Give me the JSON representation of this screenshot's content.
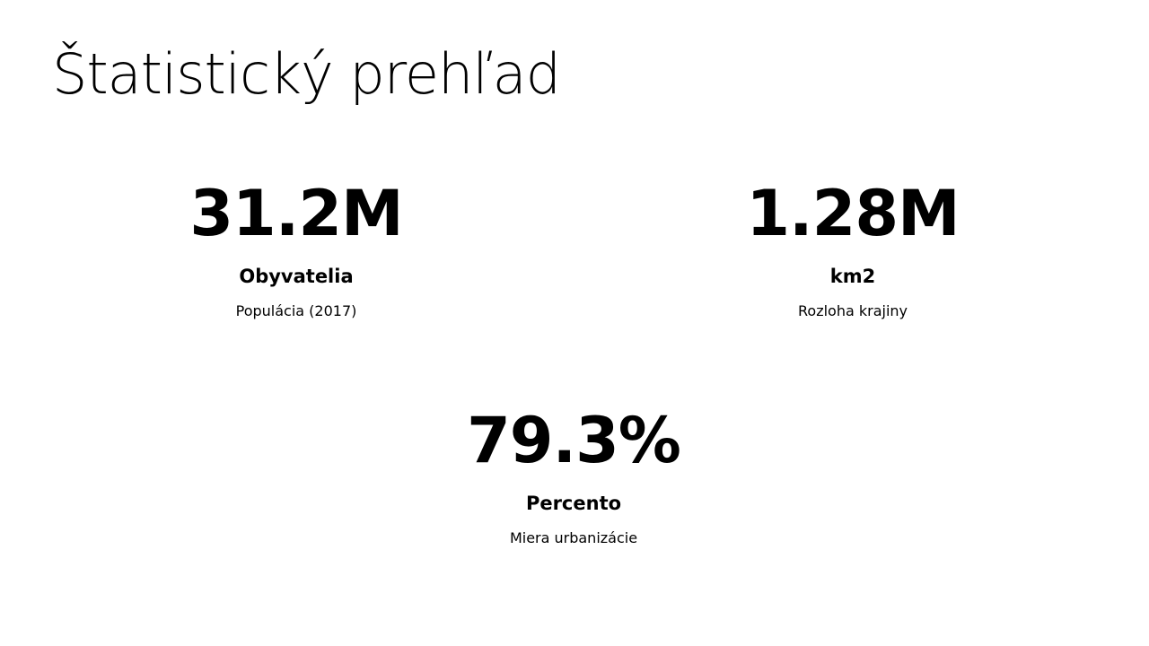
{
  "slide": {
    "title": "Štatistický prehľad"
  },
  "stats": [
    {
      "value": "31.2M",
      "label": "Obyvatelia",
      "description": "Populácia (2017)"
    },
    {
      "value": "1.28M",
      "label": "km2",
      "description": "Rozloha krajiny"
    },
    {
      "value": "79.3%",
      "label": "Percento",
      "description": "Miera urbanizácie"
    }
  ]
}
